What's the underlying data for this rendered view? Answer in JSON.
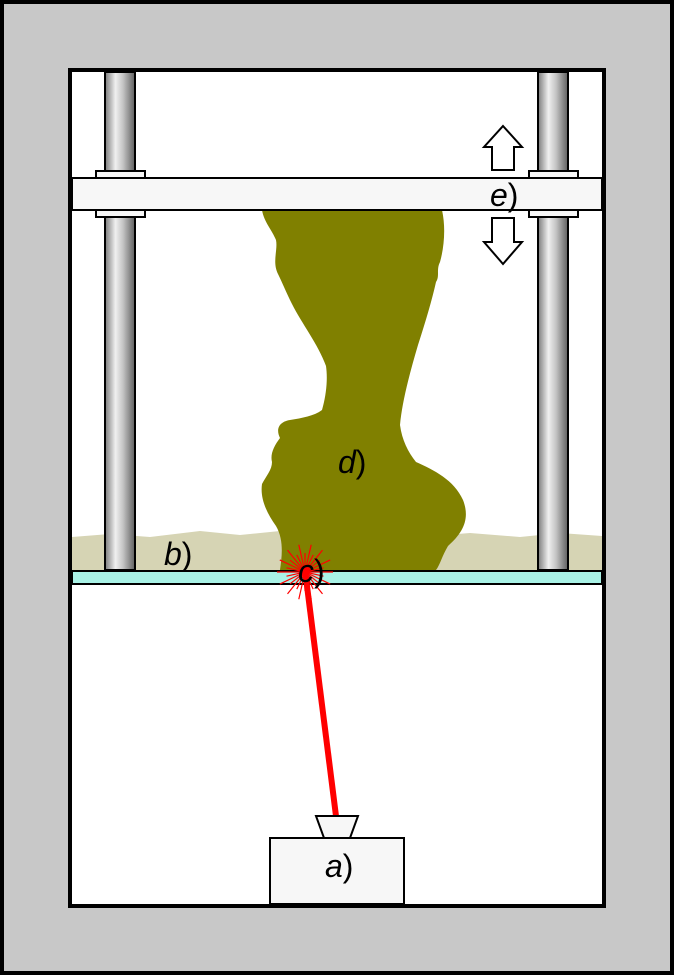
{
  "labels": {
    "a": "a",
    "b": "b",
    "c": "c",
    "d": "d",
    "e": "e",
    "paren": ")"
  },
  "colors": {
    "frame": "#c8c8c8",
    "chamber": "#ffffff",
    "rod_light": "#e0e0e0",
    "rod_dark": "#6e6e6e",
    "platform": "#f7f7f7",
    "resin": "#d6d4b4",
    "vat_glass": "#a9f2e6",
    "object": "#808000",
    "laser": "#ff0000",
    "outline": "#000000"
  },
  "icons": {
    "up": "up-arrow-icon",
    "down": "down-arrow-icon",
    "laser_spark": "laser-spark-icon"
  }
}
